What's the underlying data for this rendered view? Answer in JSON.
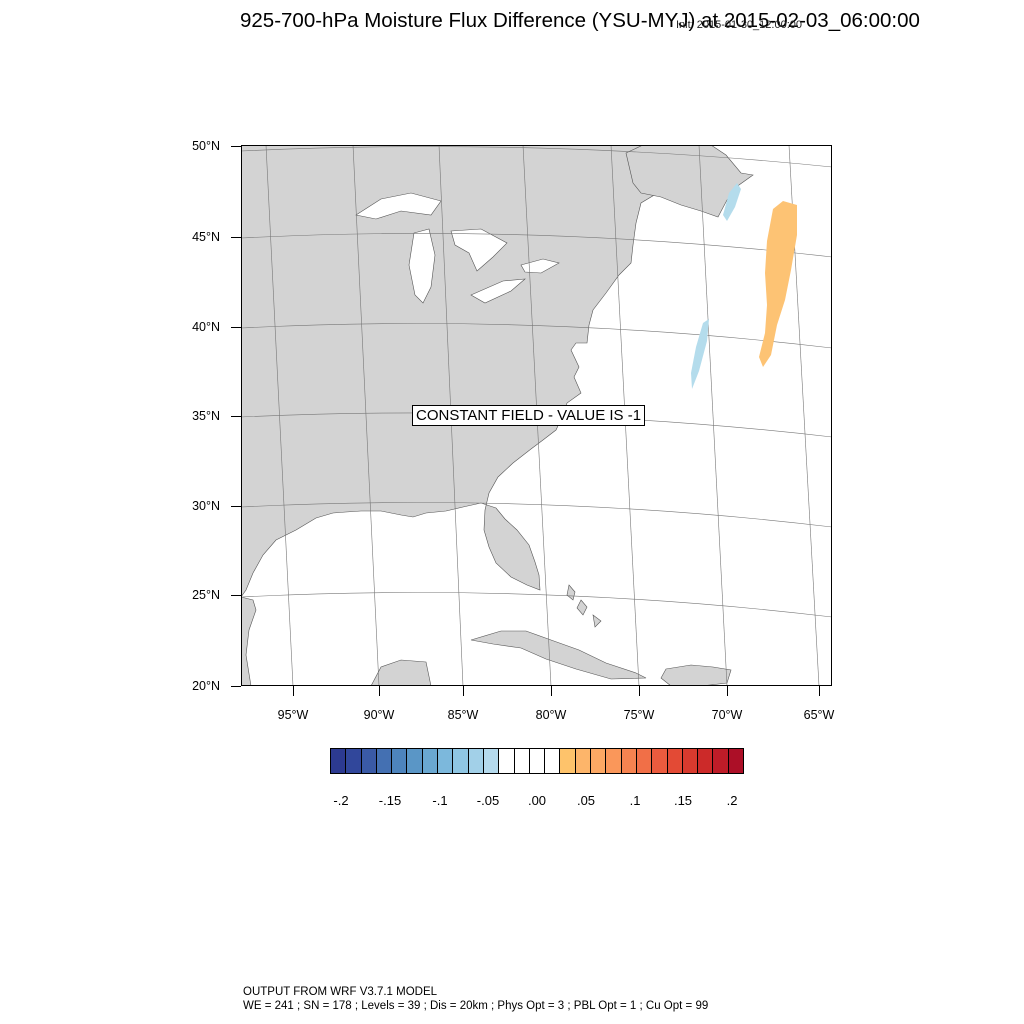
{
  "title": "925-700-hPa Moisture Flux Difference (YSU-MYJ) at 2015-02-03_06:00:00",
  "init_time": "Init: 2015-01-30_12:00:00",
  "map": {
    "lat_labels": [
      "50°N",
      "45°N",
      "40°N",
      "35°N",
      "30°N",
      "25°N",
      "20°N"
    ],
    "lon_labels": [
      "95°W",
      "90°W",
      "85°W",
      "80°W",
      "75°W",
      "70°W",
      "65°W"
    ],
    "constant_field_text": "CONSTANT FIELD - VALUE IS -1",
    "land_color": "#d3d3d3",
    "ocean_color": "#ffffff",
    "positive_anomaly_color": "#fdc374",
    "negative_anomaly_color": "#b4dcec"
  },
  "colorbar": {
    "colors": [
      "#2c3a91",
      "#31479b",
      "#3a5aa6",
      "#4470b2",
      "#4d84bd",
      "#5a96c6",
      "#6aa8d1",
      "#7cb8dc",
      "#8fc6e3",
      "#a2d0e8",
      "#b5daed",
      "#ffffff",
      "#ffffff",
      "#ffffff",
      "#ffffff",
      "#fec36b",
      "#fdb56a",
      "#fca864",
      "#fa975a",
      "#f68350",
      "#f16f47",
      "#eb5b3e",
      "#e34a35",
      "#d83a2e",
      "#cc2a29",
      "#be1c28",
      "#ac0f27"
    ],
    "labels": [
      "-.2",
      "-.15",
      "-.1",
      "-.05",
      ".00",
      ".05",
      ".1",
      ".15",
      ".2"
    ]
  },
  "footer": {
    "line1": "OUTPUT FROM WRF V3.7.1 MODEL",
    "line2": "WE = 241 ; SN = 178 ; Levels = 39 ; Dis = 20km ; Phys Opt = 3 ; PBL Opt = 1 ; Cu Opt = 99"
  }
}
